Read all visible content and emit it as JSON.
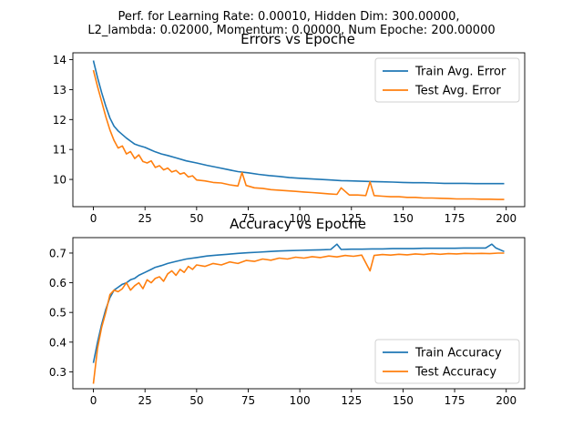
{
  "suptitle": [
    "Perf. for Learning Rate: 0.00010, Hidden Dim: 300.00000,",
    "L2_lambda: 0.02000, Momentum: 0.00000, Num Epoche: 200.00000"
  ],
  "colors": {
    "train": "#1f77b4",
    "test": "#ff7f0e"
  },
  "chart_data": [
    {
      "type": "line",
      "title": "Errors vs Epoche",
      "xlim": [
        -9.95,
        208.95
      ],
      "ylim": [
        9.09,
        14.23
      ],
      "xticks": [
        0,
        25,
        50,
        75,
        100,
        125,
        150,
        175,
        200
      ],
      "yticks": [
        10,
        11,
        12,
        13,
        14
      ],
      "legend": "top-right",
      "series": [
        {
          "name": "Train Avg. Error",
          "color_key": "train",
          "points": [
            [
              0,
              13.97
            ],
            [
              2,
              13.4
            ],
            [
              4,
              12.9
            ],
            [
              6,
              12.45
            ],
            [
              8,
              12.05
            ],
            [
              10,
              11.78
            ],
            [
              12,
              11.62
            ],
            [
              14,
              11.5
            ],
            [
              16,
              11.38
            ],
            [
              18,
              11.28
            ],
            [
              20,
              11.18
            ],
            [
              22,
              11.13
            ],
            [
              25,
              11.07
            ],
            [
              28,
              10.98
            ],
            [
              30,
              10.92
            ],
            [
              33,
              10.85
            ],
            [
              36,
              10.8
            ],
            [
              40,
              10.72
            ],
            [
              45,
              10.62
            ],
            [
              50,
              10.55
            ],
            [
              55,
              10.47
            ],
            [
              60,
              10.4
            ],
            [
              65,
              10.33
            ],
            [
              70,
              10.26
            ],
            [
              75,
              10.22
            ],
            [
              80,
              10.17
            ],
            [
              85,
              10.13
            ],
            [
              90,
              10.1
            ],
            [
              95,
              10.06
            ],
            [
              100,
              10.04
            ],
            [
              105,
              10.02
            ],
            [
              110,
              10.0
            ],
            [
              115,
              9.98
            ],
            [
              120,
              9.96
            ],
            [
              125,
              9.95
            ],
            [
              130,
              9.94
            ],
            [
              135,
              9.93
            ],
            [
              140,
              9.92
            ],
            [
              145,
              9.91
            ],
            [
              150,
              9.9
            ],
            [
              155,
              9.89
            ],
            [
              160,
              9.89
            ],
            [
              165,
              9.88
            ],
            [
              170,
              9.87
            ],
            [
              175,
              9.87
            ],
            [
              180,
              9.87
            ],
            [
              185,
              9.86
            ],
            [
              190,
              9.86
            ],
            [
              195,
              9.86
            ],
            [
              199,
              9.86
            ]
          ]
        },
        {
          "name": "Test Avg. Error",
          "color_key": "test",
          "points": [
            [
              0,
              13.65
            ],
            [
              2,
              13.1
            ],
            [
              4,
              12.6
            ],
            [
              6,
              12.1
            ],
            [
              8,
              11.65
            ],
            [
              10,
              11.3
            ],
            [
              12,
              11.05
            ],
            [
              14,
              11.12
            ],
            [
              16,
              10.85
            ],
            [
              18,
              10.93
            ],
            [
              20,
              10.7
            ],
            [
              22,
              10.82
            ],
            [
              24,
              10.6
            ],
            [
              26,
              10.55
            ],
            [
              28,
              10.62
            ],
            [
              30,
              10.4
            ],
            [
              32,
              10.46
            ],
            [
              34,
              10.32
            ],
            [
              36,
              10.38
            ],
            [
              38,
              10.25
            ],
            [
              40,
              10.3
            ],
            [
              42,
              10.18
            ],
            [
              44,
              10.22
            ],
            [
              46,
              10.08
            ],
            [
              48,
              10.12
            ],
            [
              50,
              9.98
            ],
            [
              54,
              9.95
            ],
            [
              58,
              9.9
            ],
            [
              62,
              9.88
            ],
            [
              66,
              9.82
            ],
            [
              70,
              9.78
            ],
            [
              72,
              10.23
            ],
            [
              74,
              9.8
            ],
            [
              78,
              9.72
            ],
            [
              82,
              9.7
            ],
            [
              86,
              9.66
            ],
            [
              90,
              9.64
            ],
            [
              94,
              9.62
            ],
            [
              98,
              9.6
            ],
            [
              102,
              9.58
            ],
            [
              106,
              9.56
            ],
            [
              110,
              9.54
            ],
            [
              114,
              9.52
            ],
            [
              118,
              9.5
            ],
            [
              120,
              9.72
            ],
            [
              124,
              9.48
            ],
            [
              128,
              9.48
            ],
            [
              132,
              9.46
            ],
            [
              134,
              9.92
            ],
            [
              136,
              9.46
            ],
            [
              140,
              9.44
            ],
            [
              144,
              9.42
            ],
            [
              148,
              9.42
            ],
            [
              152,
              9.4
            ],
            [
              156,
              9.4
            ],
            [
              160,
              9.38
            ],
            [
              164,
              9.38
            ],
            [
              168,
              9.37
            ],
            [
              172,
              9.36
            ],
            [
              176,
              9.35
            ],
            [
              180,
              9.35
            ],
            [
              184,
              9.35
            ],
            [
              188,
              9.34
            ],
            [
              192,
              9.34
            ],
            [
              196,
              9.33
            ],
            [
              199,
              9.33
            ]
          ]
        }
      ]
    },
    {
      "type": "line",
      "title": "Accuracy vs Epoche",
      "xlim": [
        -9.95,
        208.95
      ],
      "ylim": [
        0.243,
        0.752
      ],
      "xticks": [
        0,
        25,
        50,
        75,
        100,
        125,
        150,
        175,
        200
      ],
      "yticks": [
        0.3,
        0.4,
        0.5,
        0.6,
        0.7
      ],
      "legend": "bottom-right",
      "series": [
        {
          "name": "Train Accuracy",
          "color_key": "train",
          "points": [
            [
              0,
              0.33
            ],
            [
              2,
              0.4
            ],
            [
              4,
              0.46
            ],
            [
              6,
              0.51
            ],
            [
              8,
              0.55
            ],
            [
              10,
              0.575
            ],
            [
              12,
              0.585
            ],
            [
              14,
              0.595
            ],
            [
              16,
              0.6
            ],
            [
              18,
              0.61
            ],
            [
              20,
              0.615
            ],
            [
              22,
              0.625
            ],
            [
              25,
              0.635
            ],
            [
              28,
              0.645
            ],
            [
              30,
              0.652
            ],
            [
              33,
              0.658
            ],
            [
              36,
              0.665
            ],
            [
              40,
              0.672
            ],
            [
              45,
              0.68
            ],
            [
              50,
              0.685
            ],
            [
              55,
              0.69
            ],
            [
              60,
              0.693
            ],
            [
              65,
              0.696
            ],
            [
              70,
              0.699
            ],
            [
              75,
              0.701
            ],
            [
              80,
              0.703
            ],
            [
              85,
              0.705
            ],
            [
              90,
              0.707
            ],
            [
              95,
              0.708
            ],
            [
              100,
              0.709
            ],
            [
              105,
              0.71
            ],
            [
              110,
              0.711
            ],
            [
              115,
              0.712
            ],
            [
              118,
              0.73
            ],
            [
              120,
              0.712
            ],
            [
              125,
              0.713
            ],
            [
              130,
              0.713
            ],
            [
              135,
              0.714
            ],
            [
              140,
              0.714
            ],
            [
              145,
              0.715
            ],
            [
              150,
              0.715
            ],
            [
              155,
              0.715
            ],
            [
              160,
              0.716
            ],
            [
              165,
              0.716
            ],
            [
              170,
              0.716
            ],
            [
              175,
              0.716
            ],
            [
              180,
              0.717
            ],
            [
              185,
              0.717
            ],
            [
              190,
              0.717
            ],
            [
              193,
              0.73
            ],
            [
              195,
              0.717
            ],
            [
              199,
              0.705
            ]
          ]
        },
        {
          "name": "Test Accuracy",
          "color_key": "test",
          "points": [
            [
              0,
              0.26
            ],
            [
              2,
              0.38
            ],
            [
              4,
              0.45
            ],
            [
              6,
              0.5
            ],
            [
              8,
              0.56
            ],
            [
              10,
              0.575
            ],
            [
              12,
              0.57
            ],
            [
              14,
              0.58
            ],
            [
              16,
              0.6
            ],
            [
              18,
              0.575
            ],
            [
              20,
              0.59
            ],
            [
              22,
              0.6
            ],
            [
              24,
              0.58
            ],
            [
              26,
              0.61
            ],
            [
              28,
              0.6
            ],
            [
              30,
              0.615
            ],
            [
              32,
              0.62
            ],
            [
              34,
              0.605
            ],
            [
              36,
              0.63
            ],
            [
              38,
              0.64
            ],
            [
              40,
              0.625
            ],
            [
              42,
              0.645
            ],
            [
              44,
              0.635
            ],
            [
              46,
              0.655
            ],
            [
              48,
              0.645
            ],
            [
              50,
              0.66
            ],
            [
              54,
              0.655
            ],
            [
              58,
              0.665
            ],
            [
              62,
              0.66
            ],
            [
              66,
              0.67
            ],
            [
              70,
              0.665
            ],
            [
              74,
              0.675
            ],
            [
              78,
              0.672
            ],
            [
              82,
              0.68
            ],
            [
              86,
              0.676
            ],
            [
              90,
              0.683
            ],
            [
              94,
              0.68
            ],
            [
              98,
              0.686
            ],
            [
              102,
              0.683
            ],
            [
              106,
              0.688
            ],
            [
              110,
              0.685
            ],
            [
              114,
              0.69
            ],
            [
              118,
              0.687
            ],
            [
              122,
              0.692
            ],
            [
              126,
              0.689
            ],
            [
              130,
              0.693
            ],
            [
              134,
              0.64
            ],
            [
              136,
              0.692
            ],
            [
              140,
              0.695
            ],
            [
              144,
              0.693
            ],
            [
              148,
              0.696
            ],
            [
              152,
              0.694
            ],
            [
              156,
              0.697
            ],
            [
              160,
              0.695
            ],
            [
              164,
              0.698
            ],
            [
              168,
              0.696
            ],
            [
              172,
              0.698
            ],
            [
              176,
              0.697
            ],
            [
              180,
              0.699
            ],
            [
              184,
              0.698
            ],
            [
              188,
              0.699
            ],
            [
              192,
              0.698
            ],
            [
              196,
              0.7
            ],
            [
              199,
              0.7
            ]
          ]
        }
      ]
    }
  ]
}
